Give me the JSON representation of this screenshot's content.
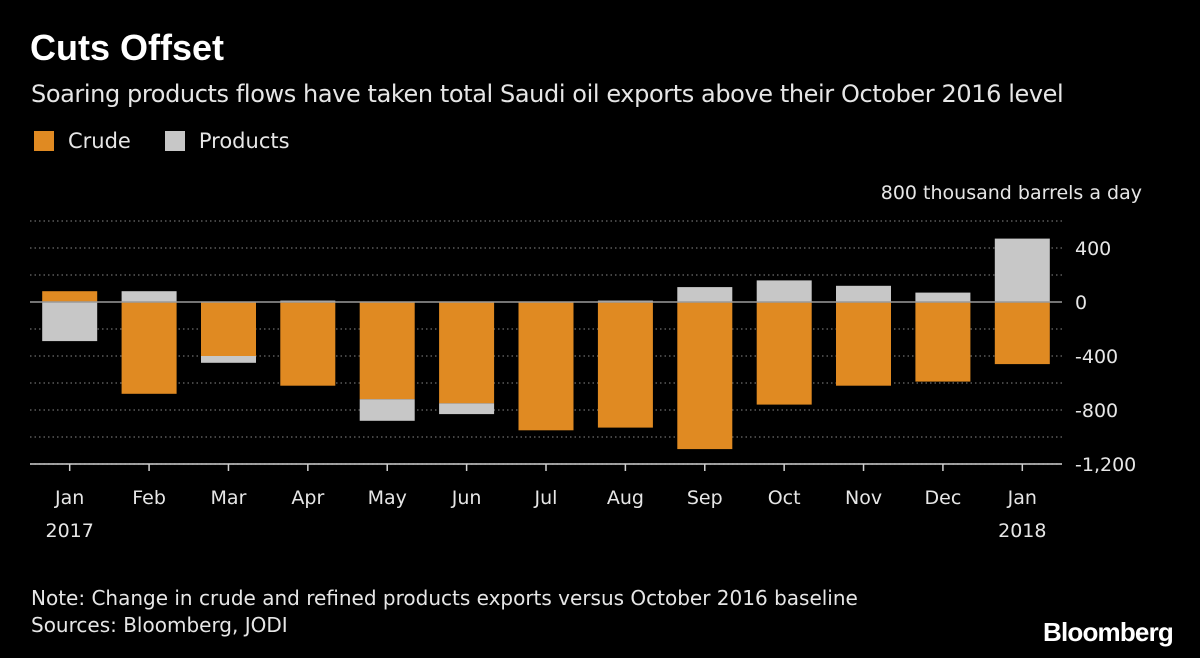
{
  "title": "Cuts Offset",
  "subtitle": "Soaring products flows have taken total Saudi oil exports above their October 2016 level",
  "note": "Note: Change in crude and refined products exports versus October 2016 baseline",
  "sources": "Sources: Bloomberg, JODI",
  "logo": "Bloomberg",
  "colors": {
    "crude": "#e08a22",
    "products": "#c7c7c7",
    "background": "#000000",
    "grid": "#6e6e6e",
    "zero_line": "#9a9a9a",
    "text": "#e6e6e6"
  },
  "chart_data": {
    "type": "bar",
    "stacked": true,
    "title": "Cuts Offset",
    "ylabel": "800 thousand barrels a day",
    "unit_label": "800 thousand barrels a day",
    "ylim": [
      -1200,
      600
    ],
    "yticks": [
      400,
      0,
      -400,
      -800,
      -1200
    ],
    "ytick_labels": [
      "400",
      "0",
      "-400",
      "-800",
      "-1,200"
    ],
    "grid": true,
    "grid_step": 200,
    "legend_position": "top-left",
    "categories": [
      "Jan",
      "Feb",
      "Mar",
      "Apr",
      "May",
      "Jun",
      "Jul",
      "Aug",
      "Sep",
      "Oct",
      "Nov",
      "Dec",
      "Jan"
    ],
    "year_labels": [
      "2017",
      "",
      "",
      "",
      "",
      "",
      "",
      "",
      "",
      "",
      "",
      "",
      "2018"
    ],
    "series": [
      {
        "name": "Crude",
        "key": "crude",
        "values": [
          80,
          -680,
          -400,
          -620,
          -720,
          -750,
          -950,
          -930,
          -1090,
          -760,
          -620,
          -590,
          -460
        ]
      },
      {
        "name": "Products",
        "key": "products",
        "values": [
          -290,
          80,
          -50,
          10,
          -160,
          -80,
          0,
          10,
          110,
          160,
          120,
          70,
          470
        ]
      }
    ]
  }
}
